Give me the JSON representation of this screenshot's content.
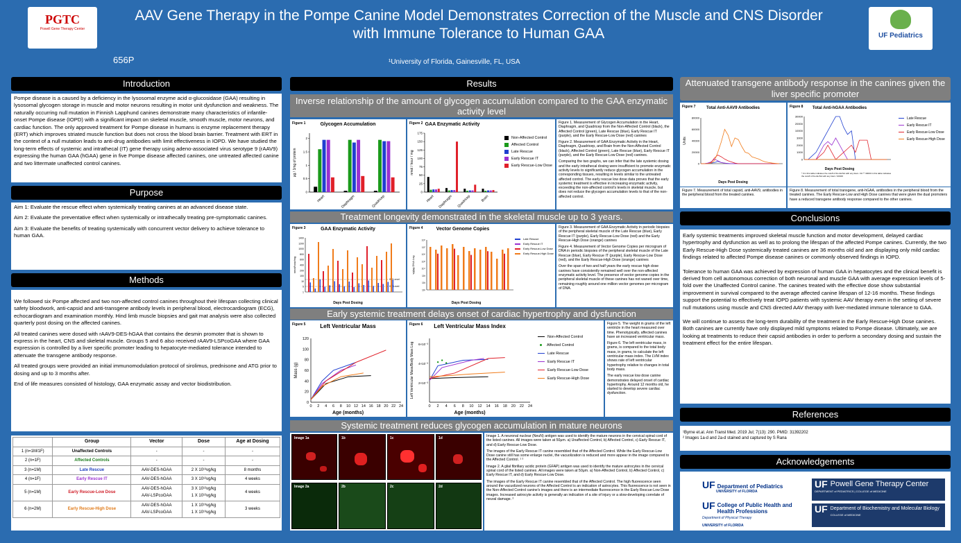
{
  "header": {
    "title_line1": "AAV Gene Therapy in the Pompe Canine Model Demonstrates Correction of the Muscle and CNS Disorder",
    "title_line2": "with Immune Tolerance to Human GAA",
    "affiliation": "¹University of Florida, Gainesville, FL, USA",
    "poster_number": "656P",
    "logo_left": "PGTC",
    "logo_left_sub": "Powell Gene Therapy Center",
    "logo_right": "UF Pediatrics"
  },
  "sections": {
    "introduction": "Introduction",
    "purpose": "Purpose",
    "methods": "Methods",
    "results": "Results",
    "attenuated": "Attenuated transgene antibody response in the canines given the liver specific promoter",
    "conclusions": "Conclusions",
    "references": "References",
    "acknowledgements": "Acknowledgements"
  },
  "intro_text": "Pompe disease is a caused by a deficiency in the lysosomal enzyme acid α-glucosidase (GAA) resulting in lysosomal glycogen storage in muscle and motor neurons resulting in motor unit dysfunction and weakness. The naturally occurring null mutation in Finnish Lapphund canines demonstrate many characteristics of infantile-onset Pompe disease (IOPD) with a significant impact on skeletal muscle, smooth muscle, motor neurons, and cardiac function. The only approved treatment for Pompe disease in humans is enzyme replacement therapy (ERT) which improves striated muscle function but does not cross the blood brain barrier. Treatment with ERT in the context of a null mutation leads to anti-drug antibodies with limit effectiveness in IOPD. We have studied the long-term effects of systemic and intrathecal (IT) gene therapy using adeno-associated virus serotype 9 (rAAV9) expressing the human GAA (hGAA) gene in five Pompe disease affected canines, one untreated affected canine and two littermate unaffected control canines.",
  "purpose": [
    "Aim 1: Evaluate the rescue effect when systemically treating canines at an advanced disease state.",
    "Aim 2: Evaluate the preventative effect when systemically or intrathecally treating pre-symptomatic canines.",
    "Aim 3: Evaluate the benefits of treating systemically with concurrent vector delivery to achieve tolerance to human GAA."
  ],
  "methods": [
    "We followed six Pompe affected and two non-affected control canines throughout their lifespan collecting clinical safety bloodwork, anti-capsid and anti-transgene antibody levels in peripheral blood, electrocardiogram (ECG), echocardiogram and examination monthly. Hind limb muscle biopsies and gait mat analysis were also collected quarterly post dosing on the affected canines.",
    "All treated canines were dosed with rAAV9-DES-hGAA that contains the desmin promoter that is shown to express in the heart, CNS and skeletal muscle. Groups 5 and 6 also received rAAV9-LSPcoGAA where GAA expression is controlled by a liver specific promoter leading to hepatocyte-mediated tolerance intended to attenuate the transgene antibody response.",
    "All treated groups were provided an initial immunomodulation protocol of sirolimus, prednisone and ATG prior to dosing and up to 3 months after.",
    "End of life measures consisted of histology, GAA enzymatic assay and vector biodistribution."
  ],
  "table": {
    "headers": [
      "Group",
      "Vector",
      "Dose",
      "Age at Dosing"
    ],
    "rows": [
      [
        "1 (n=1M/1F)",
        "Unaffected Controls",
        "-",
        "-",
        "-",
        "#000000"
      ],
      [
        "2 (n=1F)",
        "Affected Controls",
        "-",
        "-",
        "-",
        "#1a7a1a"
      ],
      [
        "3 (n=1M)",
        "Late Rescue",
        "AAV-DES-hGAA",
        "2 X 10¹³vg/kg",
        "8 months",
        "#1f3fbf"
      ],
      [
        "4 (n=1F)",
        "Early Rescue IT",
        "AAV-DES-hGAA",
        "3 X 10¹²vg/kg",
        "4 weeks",
        "#9b30d0"
      ],
      [
        "5 (n=1M)",
        "Early Rescue-Low Dose",
        "AAV-DES-hGAA / AAV-LSPcoGAA",
        "3 X 10¹²vg/kg / 1 X 10¹²vg/kg",
        "4 weeks",
        "#d0202a"
      ],
      [
        "6 (n=2M)",
        "Early Rescue-High Dose",
        "AAV-DES-hGAA / AAV-LSPcoGAA",
        "1 X 10¹³vg/kg / 1 X 10¹³vg/kg",
        "3 weeks",
        "#e07b1a"
      ]
    ]
  },
  "results": {
    "sub1": "Inverse relationship of the amount of glycogen accumulation compared to the GAA enzymatic activity level",
    "sub2": "Treatment longevity demonstrated in the skeletal muscle up to 3 years.",
    "sub3": "Early systemic treatment delays onset of cardiac hypertrophy and dysfunction",
    "sub4": "Systemic treatment reduces glycogen accumulation in mature neurons",
    "fig12_caption": [
      "Figure 1. Measurement of Glycogen Accumulation in the Heart, Diaphragm, and Quadricep from the Non-Affected Control (black), the Affected Control (green), Late Rescue (blue), Early Rescue IT (purple), and the Early Rescue-Low Dose (red) canines",
      "Figure 2. Measurement of GAA Enzymatic Activity in the Heart, Diaphragm, Quadricep, and Brain from the Non-Affected Control (black), Affected Control (green), Late Rescue (blue), Early Rescue IT (purple), and the Early Rescue-Low Dose (red) canines.",
      "Comparing the two graphs, we can infer that the late systemic dosing and the early intrathecal dosing were insufficient to promote enzymatic activity levels to significantly reduce glycogen accumulation in the corresponding tissues, resulting in levels similar to the untreated affected control. The early rescue low dose data proves that the early systemic treatment is effective in increasing enzymatic activity, exceeding the non-affected control's levels in skeletal muscle, but does not reduce the glycogen accumulation levels to that of the non-affected control."
    ],
    "fig34_caption": [
      "Figure 3. Measurement of GAA Enzymatic Activity in periodic biopsies of the peripheral skeletal muscle of the Late Rescue (blue), Early Rescue IT (purple), Early Rescue-Low Dose (red) and the Early Rescue-High Dose (orange) canines",
      "Figure 4. Measurement of Vector Genome Copies per microgram of DNA in periodic biopsies of the peripheral skeletal muscle of the Late Rescue (blue), Early Rescue IT (purple), Early Rescue-Low Dose (red), and the Early Rescue-High Dose (orange) canines",
      "Over the span of two and half years the early rescue high dose canines have consistently remained well over the non-affected enzymatic activity level. The presence of vector genome copies in the peripheral skeletal muscle of these canines has not waned over time, remaining roughly around one million vector genomes per microgram of DNA."
    ],
    "fig56_caption": [
      "Figure 5. The weight in grams of the left ventricle in the heart measured over time. Phenotypically, affected canines have an increased ventricular mass.",
      "Figure 6. The left ventricular mass, in grams, is compared to the total body mass, in grams, to calculate the left ventricular mass index. The LVM index shows rate of left ventricular hypertrophy relative to changes in total body mass.",
      "The early rescue low dose canine demonstrates delayed onset of cardiac hypertrophy. Around 12 months old, he started to develop severe cardiac dysfunction."
    ],
    "img_caption": [
      "Image 1. A neuronal nuclear (NeuN) antigen was used to identify the mature neurons in the cervical spinal cord of the listed canines. All images were taken at 50μm. a) Unaffected Control, b) Affected Control, c) Early Rescue IT, and d) Early Rescue-Low Dose.",
      "The images of the Early Rescue IT canine resembled that of the Affected Control. While the Early Rescue-Low Dose canine still has some enlarge nuclei, the vacuolization is reduced and more appear in the image compared to the Affected Control. ¹ ²",
      "Image 2. A glial fibrillary acidic protein (GFAP) antigen was used to identify the mature astrocytes in the cervical spinal cord of the listed canines. All images were taken at 50μm. a) Non-Affected Control, b) Affected Control, c) Early Rescue IT, and d) Early Rescue-Low Dose.",
      "The images of the Early Rescue IT canine resembled that of the Affected Control. The high fluorescence seen around the vacuolized neurons of the Affected Control is an indication of astrocytes. This fluorescence is not seen in the Non-Affected Control canine's images and there is an intermediate fluorescence in the Early Rescue-Low Dose images. Increased astrocyte activity is generally an indication of a site of injury or a slow-developing correlate of neural damage. ²"
    ],
    "img_labels": [
      "Image 1a",
      "1b",
      "1c",
      "1d",
      "Image 2a",
      "2b",
      "2c",
      "2d"
    ]
  },
  "figures": {
    "fig1": {
      "label": "Figure 1",
      "title": "Glycogen Accumulation",
      "ylabel": "μg / 1mg of protein"
    },
    "fig2": {
      "label": "Figure 2",
      "title": "GAA Enzymatic Activity",
      "ylabel": "nmol / hour / mg"
    },
    "fig3": {
      "label": "Figure 3",
      "title": "GAA Enzymatic Activity",
      "xlabel": "Days Post Dosing",
      "ylabel": "nmol/hour/mg",
      "wt": "WT Level",
      "ko": "KO Level"
    },
    "fig4": {
      "label": "Figure 4",
      "title": "Vector Genome Copies",
      "xlabel": "Days Post Dosing",
      "ylabel": "vg/μg DNA Log"
    },
    "fig5": {
      "label": "Figure 5",
      "title": "Left Ventricular Mass",
      "xlabel": "Age (months)",
      "ylabel": "Mass (g)"
    },
    "fig6": {
      "label": "Figure 6",
      "title": "Left Ventricular Mass Index",
      "xlabel": "Age (months)",
      "ylabel": "Left Ventricular Mass/Body Mass Log"
    },
    "fig7": {
      "label": "Figure 7",
      "title": "Total Anti-AAV9 Antibodies",
      "xlabel": "Days Post Dosing",
      "ylabel": "Units"
    },
    "fig8": {
      "label": "Figure 8",
      "title": "Total Anti-hGAA Antibodies",
      "xlabel": "Days Post Dosing",
      "note": "* 0 in this table indicates the cutoff of the ELISA with any titers <10 ** 30000 in this table indicates the cutoff of the ELISA with any titers >30400"
    }
  },
  "legend": {
    "groups": [
      "Non-Affected Control",
      "Affected Control",
      "Late Rescue",
      "Early Rescue IT",
      "Early Rescue-Low Dose",
      "Early Rescue-High Dose"
    ],
    "colors": [
      "#000000",
      "#1a9a1a",
      "#1f3fd0",
      "#9b30d0",
      "#e0202a",
      "#f07b1a"
    ]
  },
  "chart_data": [
    {
      "type": "bar",
      "title": "Glycogen Accumulation",
      "categories": [
        "Heart",
        "Diaphragm",
        "Quadricep"
      ],
      "ylabel": "μg / 1mg of protein",
      "ylim": [
        0,
        2.2
      ],
      "series": [
        {
          "name": "Non-Affected Control",
          "values": [
            0.2,
            0.05,
            0.05
          ]
        },
        {
          "name": "Affected Control",
          "values": [
            1.6,
            1.95,
            1.95
          ]
        },
        {
          "name": "Late Rescue",
          "values": [
            1.95,
            1.85,
            1.9
          ]
        },
        {
          "name": "Early Rescue IT",
          "values": [
            1.95,
            1.95,
            1.9
          ]
        },
        {
          "name": "Early Rescue-Low Dose",
          "values": [
            0.55,
            0.6,
            0.55
          ]
        }
      ]
    },
    {
      "type": "bar",
      "title": "GAA Enzymatic Activity",
      "categories": [
        "Heart",
        "Diaphragm",
        "Quadricep",
        "Brain"
      ],
      "ylabel": "nmol / hour / mg",
      "ylim": [
        0,
        175
      ],
      "series": [
        {
          "name": "Non-Affected Control",
          "values": [
            45,
            12,
            10,
            10
          ]
        },
        {
          "name": "Affected Control",
          "values": [
            7,
            5,
            4,
            4
          ]
        },
        {
          "name": "Late Rescue",
          "values": [
            8,
            6,
            5,
            5
          ]
        },
        {
          "name": "Early Rescue IT",
          "values": [
            8,
            6,
            5,
            5
          ]
        },
        {
          "name": "Early Rescue-Low Dose",
          "values": [
            10,
            150,
            22,
            6
          ]
        }
      ]
    },
    {
      "type": "line",
      "title": "Left Ventricular Mass",
      "xlabel": "Age (months)",
      "ylabel": "Mass (g)",
      "xlim": [
        0,
        24
      ],
      "ylim": [
        0,
        120
      ]
    },
    {
      "type": "line",
      "title": "Left Ventricular Mass Index",
      "xlabel": "Age (months)",
      "ylabel": "Left Ventricular Mass/Body Mass Log",
      "xlim": [
        0,
        24
      ]
    },
    {
      "type": "line",
      "title": "Total Anti-AAV9 Antibodies",
      "xlabel": "Days Post Dosing",
      "ylabel": "Units",
      "ylim": [
        0,
        80000
      ]
    },
    {
      "type": "line",
      "title": "Total Anti-hGAA Antibodies",
      "xlabel": "Days Post Dosing",
      "ylim": [
        0,
        30000
      ]
    }
  ],
  "fig7_caption": "Figure 7. Measurement of total capsid, anti-AAV9, antibodies in the peripheral blood from the treated canines.",
  "fig8_caption": "Figure 8. Measurement of total transgene, anti-hGAA, antibodies in the peripheral blood from the treated canines. The Early Rescue-Low and High Dose canines that were given the dual promoters have a reduced transgene antibody response compared to the other canines.",
  "conclusions": [
    "Early systemic treatments improved skeletal muscle function and motor development, delayed cardiac hypertrophy and dysfunction as well as to prolong the lifespan of the affected Pompe canines. Currently, the two Early Rescue-High Dose systemically treated canines are 36 months old and are displaying only mild cardiac findings related to affected Pompe disease canines or commonly observed findings in IOPD.",
    "Tolerance to human GAA was achieved by expression of human GAA in hepatocytes and the clinical benefit is derived from cell autonomous correction of both neuronal and muscle GAA with average expression levels of 5-fold over the Unaffected Control canine. The canines treated with the effective dose show substantial improvement in survival compared to the average affected canine lifespan of 12-16 months. These findings support the potential to effectively treat IOPD patients with systemic AAV therapy even in the setting of severe null mutations using muscle and CNS directed AAV therapy with liver-mediated immune tolerance to GAA.",
    "We will continue to assess the long-term durability of the treatment in the Early Rescue-High Dose canines. Both canines are currently have only displayed mild symptoms related to Pompe disease. Ultimately, we are looking at treatments to reduce their capsid antibodies in order to perform a secondary dosing and sustain the treatment effect for the entire lifespan."
  ],
  "references": [
    "¹Byrne et.al. Ann Transl Med. 2019 Jul; 7(13): 290. PMID: 31392202",
    "² Images 1a-d and 2a-d stained and captured by S Rana"
  ],
  "acks": [
    "Department of Pediatrics",
    "UNIVERSITY of FLORIDA",
    "College of Public Health and Health Professions",
    "Department of Physical Therapy",
    "UNIVERSITY of FLORIDA",
    "Powell Gene Therapy Center",
    "DEPARTMENT of PEDIATRICS | COLLEGE of MEDICINE",
    "Department of Biochemistry and Molecular Biology",
    "COLLEGE of MEDICINE"
  ]
}
